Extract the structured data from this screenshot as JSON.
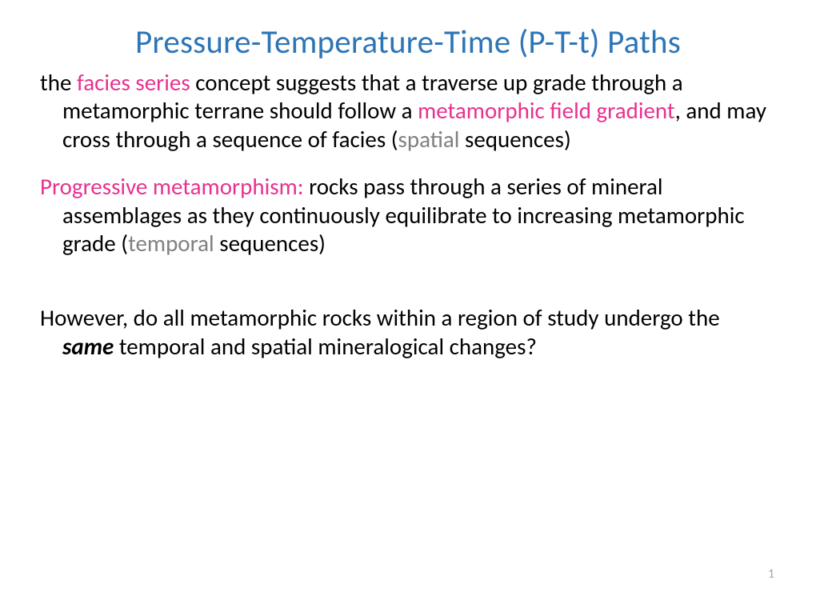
{
  "colors": {
    "title": "#2e75b6",
    "body": "#000000",
    "pink": "#e8318f",
    "gray": "#808080",
    "pagenum": "#a6a6a6"
  },
  "title": "Pressure-Temperature-Time (P-T-t) Paths",
  "para1": {
    "t1": "the ",
    "pink1": "facies series",
    "t2": " concept suggests that a traverse up grade through a metamorphic terrane should follow a ",
    "pink2": "metamorphic field gradient",
    "t3": ", and may cross through a sequence of facies (",
    "gray1": "spatial",
    "t4": " sequences)"
  },
  "para2": {
    "pink1": "Progressive metamorphism:",
    "t1": " rocks pass through a series of mineral assemblages as they continuously equilibrate to increasing metamorphic grade (",
    "gray1": "temporal",
    "t2": " sequences)"
  },
  "para3": {
    "t1": "However, do all metamorphic rocks within a region of study undergo the ",
    "bi1": "same",
    "t2": " temporal and spatial mineralogical changes?"
  },
  "page_number": "1"
}
